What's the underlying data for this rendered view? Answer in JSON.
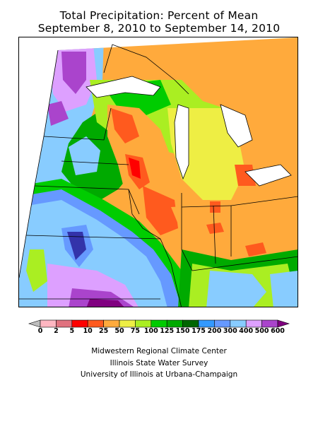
{
  "title": {
    "line1": "Total Precipitation: Percent of Mean",
    "line2": "September 8, 2010 to September 14, 2010"
  },
  "legend": {
    "ticks": [
      "0",
      "2",
      "5",
      "10",
      "25",
      "50",
      "75",
      "100",
      "125",
      "150",
      "175",
      "200",
      "300",
      "400",
      "500",
      "600"
    ],
    "colors": [
      "#bdbdbd",
      "#ffb6c1",
      "#e0727f",
      "#ff0000",
      "#ff5a1e",
      "#ffaa3c",
      "#eeee44",
      "#aaee22",
      "#00cc00",
      "#00aa00",
      "#006600",
      "#3399ff",
      "#6699ff",
      "#88ccff",
      "#dda0ff",
      "#aa44cc",
      "#800080"
    ]
  },
  "credits": {
    "line1": "Midwestern Regional Climate Center",
    "line2": "Illinois State Water Survey",
    "line3": "University of Illinois at Urbana-Champaign"
  }
}
